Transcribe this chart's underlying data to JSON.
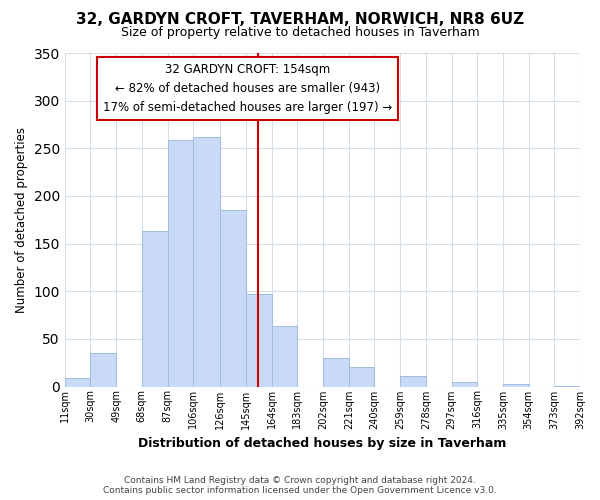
{
  "title": "32, GARDYN CROFT, TAVERHAM, NORWICH, NR8 6UZ",
  "subtitle": "Size of property relative to detached houses in Taverham",
  "xlabel": "Distribution of detached houses by size in Taverham",
  "ylabel": "Number of detached properties",
  "bin_edges": [
    11,
    30,
    49,
    68,
    87,
    106,
    126,
    145,
    164,
    183,
    202,
    221,
    240,
    259,
    278,
    297,
    316,
    335,
    354,
    373,
    392
  ],
  "bin_heights": [
    9,
    35,
    0,
    163,
    259,
    262,
    185,
    97,
    63,
    0,
    30,
    21,
    0,
    11,
    0,
    5,
    0,
    3,
    0,
    1
  ],
  "bar_color": "#c8daf5",
  "bar_edge_color": "#a0bce0",
  "vline_x": 154,
  "vline_color": "#cc0000",
  "annotation_line1": "32 GARDYN CROFT: 154sqm",
  "annotation_line2": "← 82% of detached houses are smaller (943)",
  "annotation_line3": "17% of semi-detached houses are larger (197) →",
  "ylim": [
    0,
    350
  ],
  "tick_labels": [
    "11sqm",
    "30sqm",
    "49sqm",
    "68sqm",
    "87sqm",
    "106sqm",
    "126sqm",
    "145sqm",
    "164sqm",
    "183sqm",
    "202sqm",
    "221sqm",
    "240sqm",
    "259sqm",
    "278sqm",
    "297sqm",
    "316sqm",
    "335sqm",
    "354sqm",
    "373sqm",
    "392sqm"
  ],
  "footer_line1": "Contains HM Land Registry data © Crown copyright and database right 2024.",
  "footer_line2": "Contains public sector information licensed under the Open Government Licence v3.0.",
  "background_color": "#ffffff",
  "grid_color": "#d4dde8"
}
